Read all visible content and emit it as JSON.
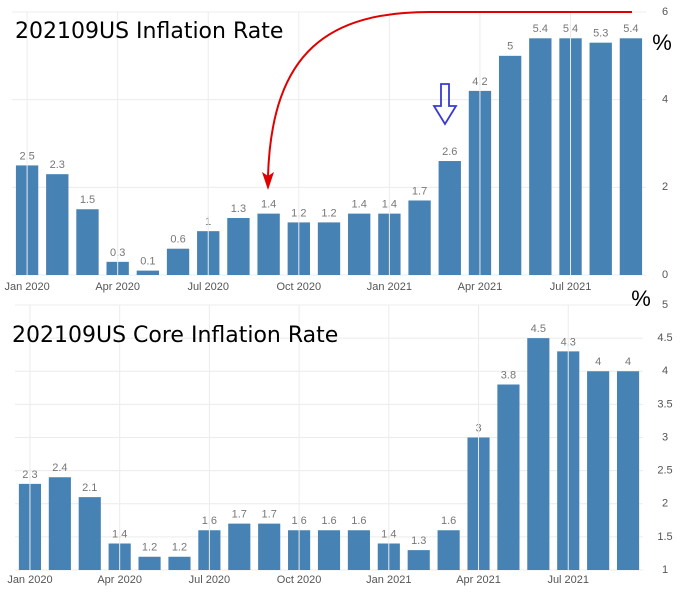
{
  "chart_data": [
    {
      "type": "bar",
      "title": "202109US Inflation Rate",
      "y_label": "%",
      "categories": [
        "Jan 2020",
        null,
        null,
        "Apr 2020",
        null,
        null,
        "Jul 2020",
        null,
        null,
        "Oct 2020",
        null,
        null,
        "Jan 2021",
        null,
        null,
        "Apr 2021",
        null,
        null,
        "Jul 2021",
        null,
        null
      ],
      "values": [
        2.5,
        2.3,
        1.5,
        0.3,
        0.1,
        0.6,
        1,
        1.3,
        1.4,
        1.2,
        1.2,
        1.4,
        1.4,
        1.7,
        2.6,
        4.2,
        5,
        5.4,
        5.4,
        5.3,
        5.4
      ],
      "color": "#4682b4",
      "ylim": [
        0,
        6
      ],
      "yticks": [
        0,
        2,
        4,
        6
      ],
      "grid": true
    },
    {
      "type": "bar",
      "title": "202109US Core Inflation Rate",
      "y_label": "%",
      "categories": [
        "Jan 2020",
        null,
        null,
        "Apr 2020",
        null,
        null,
        "Jul 2020",
        null,
        null,
        "Oct 2020",
        null,
        null,
        "Jan 2021",
        null,
        null,
        "Apr 2021",
        null,
        null,
        "Jul 2021",
        null,
        null
      ],
      "values": [
        2.3,
        2.4,
        2.1,
        1.4,
        1.2,
        1.2,
        1.6,
        1.7,
        1.7,
        1.6,
        1.6,
        1.6,
        1.4,
        1.3,
        1.6,
        3,
        3.8,
        4.5,
        4.3,
        4,
        4
      ],
      "color": "#4682b4",
      "ylim": [
        1,
        5
      ],
      "yticks": [
        1,
        1.5,
        2,
        2.5,
        3,
        3.5,
        4,
        4.5,
        5
      ],
      "grid": true
    }
  ]
}
